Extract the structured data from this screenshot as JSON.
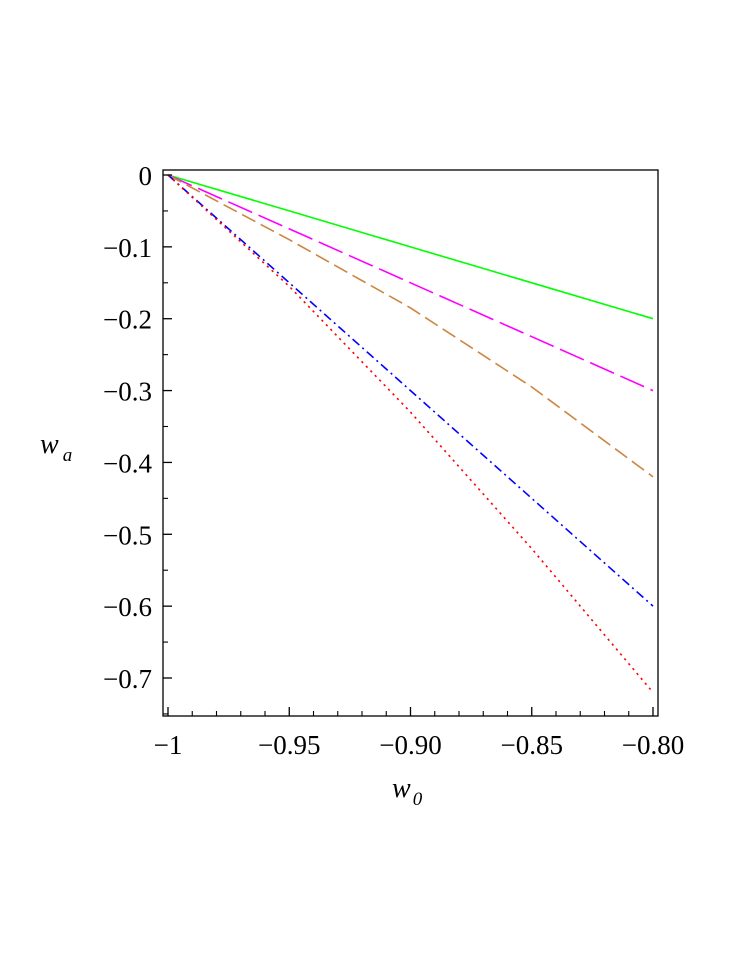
{
  "chart_data": {
    "type": "line",
    "xlabel": {
      "main": "w",
      "sub": "0"
    },
    "ylabel": {
      "main": "w",
      "sub": "a"
    },
    "xlim": [
      -1.0,
      -0.8
    ],
    "ylim": [
      -0.76,
      0.0
    ],
    "x_ticks": [
      {
        "value": -1.0,
        "label": "−1"
      },
      {
        "value": -0.95,
        "label": "−0.95"
      },
      {
        "value": -0.9,
        "label": "−0.90"
      },
      {
        "value": -0.85,
        "label": "−0.85"
      },
      {
        "value": -0.8,
        "label": "−0.80"
      }
    ],
    "y_ticks": [
      {
        "value": 0.0,
        "label": "0"
      },
      {
        "value": -0.1,
        "label": "−0.1"
      },
      {
        "value": -0.2,
        "label": "−0.2"
      },
      {
        "value": -0.3,
        "label": "−0.3"
      },
      {
        "value": -0.4,
        "label": "−0.4"
      },
      {
        "value": -0.5,
        "label": "−0.5"
      },
      {
        "value": -0.6,
        "label": "−0.6"
      },
      {
        "value": -0.7,
        "label": "−0.7"
      }
    ],
    "grid": false,
    "legend": "none",
    "series": [
      {
        "color": "#00ff00",
        "dash": "solid",
        "x": [
          -1.0,
          -0.95,
          -0.9,
          -0.85,
          -0.8
        ],
        "y": [
          0.0,
          -0.05,
          -0.1,
          -0.15,
          -0.2
        ]
      },
      {
        "color": "#ff00ff",
        "dash": "long-dash",
        "x": [
          -1.0,
          -0.95,
          -0.9,
          -0.85,
          -0.8
        ],
        "y": [
          0.0,
          -0.075,
          -0.15,
          -0.225,
          -0.3
        ]
      },
      {
        "color": "#cd853f",
        "dash": "dash",
        "x": [
          -1.0,
          -0.95,
          -0.9,
          -0.85,
          -0.8
        ],
        "y": [
          0.0,
          -0.09,
          -0.185,
          -0.295,
          -0.42
        ]
      },
      {
        "color": "#0000ff",
        "dash": "dash-dot",
        "x": [
          -1.0,
          -0.95,
          -0.9,
          -0.85,
          -0.8
        ],
        "y": [
          0.0,
          -0.15,
          -0.3,
          -0.45,
          -0.6
        ]
      },
      {
        "color": "#ff0000",
        "dash": "dot",
        "x": [
          -1.0,
          -0.95,
          -0.9,
          -0.85,
          -0.8
        ],
        "y": [
          0.0,
          -0.155,
          -0.33,
          -0.52,
          -0.72
        ]
      }
    ]
  }
}
